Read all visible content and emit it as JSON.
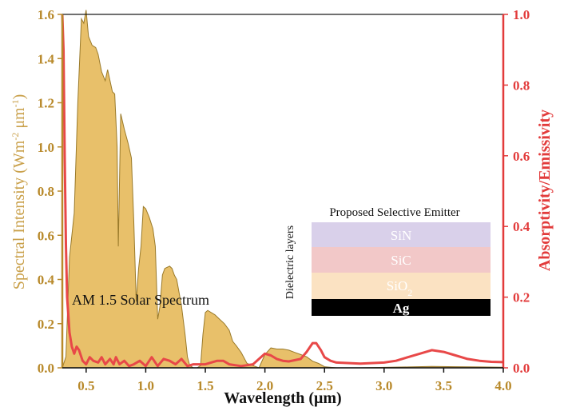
{
  "chart_data": {
    "type": "area",
    "xlabel": "Wavelength (μm)",
    "ylabel_left": "Spectral Intensity (Wm-2 μm-1)",
    "ylabel_right": "Absorptivity/Emissivity",
    "xlim": [
      0.3,
      4.0
    ],
    "ylim_left": [
      0.0,
      1.6
    ],
    "ylim_right": [
      0.0,
      1.0
    ],
    "x_ticks": [
      "0.5",
      "1.0",
      "1.5",
      "2.0",
      "2.5",
      "3.0",
      "3.5",
      "4.0"
    ],
    "y_left_ticks": [
      "0.0",
      "0.2",
      "0.4",
      "0.6",
      "0.8",
      "1.0",
      "1.2",
      "1.4",
      "1.6"
    ],
    "y_right_ticks": [
      "0.0",
      "0.2",
      "0.4",
      "0.6",
      "0.8",
      "1.0"
    ],
    "grid": false,
    "colors": {
      "solar_fill": "#e8c06a",
      "solar_stroke": "#9a7a2a",
      "emissivity": "#e84848",
      "left_axis": "#b8892a",
      "right_axis": "#e23b3b"
    },
    "series": [
      {
        "name": "AM 1.5 Solar Spectrum",
        "axis": "left",
        "x": [
          0.3,
          0.33,
          0.36,
          0.4,
          0.43,
          0.46,
          0.48,
          0.5,
          0.52,
          0.55,
          0.58,
          0.6,
          0.63,
          0.66,
          0.68,
          0.7,
          0.72,
          0.74,
          0.76,
          0.77,
          0.79,
          0.82,
          0.85,
          0.88,
          0.9,
          0.92,
          0.94,
          0.96,
          0.98,
          1.0,
          1.03,
          1.06,
          1.08,
          1.1,
          1.12,
          1.14,
          1.16,
          1.2,
          1.22,
          1.24,
          1.26,
          1.28,
          1.3,
          1.33,
          1.35,
          1.37,
          1.4,
          1.43,
          1.46,
          1.48,
          1.5,
          1.52,
          1.55,
          1.58,
          1.62,
          1.66,
          1.7,
          1.73,
          1.76,
          1.8,
          1.82,
          1.85,
          1.9,
          1.95,
          2.0,
          2.05,
          2.1,
          2.15,
          2.2,
          2.25,
          2.3,
          2.35,
          2.4,
          2.45,
          2.5,
          2.6,
          2.8,
          3.0,
          3.2,
          3.4,
          3.6,
          3.8,
          4.0
        ],
        "values": [
          0.0,
          0.05,
          0.5,
          0.7,
          1.2,
          1.58,
          1.56,
          1.62,
          1.5,
          1.46,
          1.45,
          1.42,
          1.34,
          1.3,
          1.35,
          1.3,
          1.25,
          1.24,
          1.0,
          0.55,
          1.15,
          1.08,
          1.02,
          0.95,
          0.66,
          0.3,
          0.45,
          0.55,
          0.73,
          0.72,
          0.68,
          0.63,
          0.55,
          0.22,
          0.28,
          0.42,
          0.45,
          0.46,
          0.45,
          0.42,
          0.4,
          0.34,
          0.28,
          0.15,
          0.05,
          0.01,
          0.0,
          0.0,
          0.01,
          0.15,
          0.25,
          0.26,
          0.25,
          0.24,
          0.22,
          0.2,
          0.17,
          0.12,
          0.1,
          0.07,
          0.05,
          0.02,
          0.01,
          0.0,
          0.06,
          0.09,
          0.085,
          0.085,
          0.08,
          0.07,
          0.06,
          0.05,
          0.03,
          0.02,
          0.005,
          0.0,
          0.0,
          0.002,
          0.004,
          0.006,
          0.005,
          0.004,
          0.003
        ]
      },
      {
        "name": "Emissivity",
        "axis": "right",
        "x": [
          0.3,
          0.31,
          0.32,
          0.33,
          0.34,
          0.36,
          0.38,
          0.4,
          0.42,
          0.44,
          0.47,
          0.5,
          0.53,
          0.56,
          0.6,
          0.63,
          0.66,
          0.7,
          0.73,
          0.75,
          0.78,
          0.82,
          0.86,
          0.9,
          0.95,
          1.0,
          1.05,
          1.1,
          1.15,
          1.2,
          1.25,
          1.3,
          1.35,
          1.4,
          1.5,
          1.6,
          1.65,
          1.7,
          1.8,
          1.9,
          1.95,
          2.0,
          2.05,
          2.1,
          2.15,
          2.2,
          2.3,
          2.35,
          2.4,
          2.43,
          2.47,
          2.5,
          2.55,
          2.6,
          2.8,
          3.0,
          3.1,
          3.2,
          3.3,
          3.4,
          3.5,
          3.6,
          3.7,
          3.8,
          3.9,
          4.0
        ],
        "values": [
          1.0,
          0.9,
          0.6,
          0.35,
          0.2,
          0.1,
          0.06,
          0.04,
          0.06,
          0.05,
          0.02,
          0.01,
          0.03,
          0.02,
          0.015,
          0.03,
          0.01,
          0.025,
          0.01,
          0.03,
          0.01,
          0.02,
          0.005,
          0.01,
          0.02,
          0.005,
          0.03,
          0.005,
          0.025,
          0.02,
          0.01,
          0.025,
          0.005,
          0.01,
          0.01,
          0.02,
          0.02,
          0.01,
          0.005,
          0.01,
          0.025,
          0.04,
          0.035,
          0.025,
          0.02,
          0.018,
          0.025,
          0.045,
          0.07,
          0.07,
          0.05,
          0.03,
          0.02,
          0.015,
          0.012,
          0.015,
          0.02,
          0.03,
          0.04,
          0.05,
          0.045,
          0.035,
          0.025,
          0.02,
          0.017,
          0.016
        ]
      }
    ],
    "annotation": "AM 1.5 Solar Spectrum",
    "inset": {
      "title": "Proposed Selective Emitter",
      "side_label": "Dielectric layers",
      "layers": [
        {
          "name": "SiN",
          "color": "#d9d0ea"
        },
        {
          "name": "SiC",
          "color": "#f2c8c8"
        },
        {
          "name": "SiO2",
          "color": "#fbe2c2"
        },
        {
          "name": "Ag",
          "color": "#000000"
        }
      ]
    }
  }
}
